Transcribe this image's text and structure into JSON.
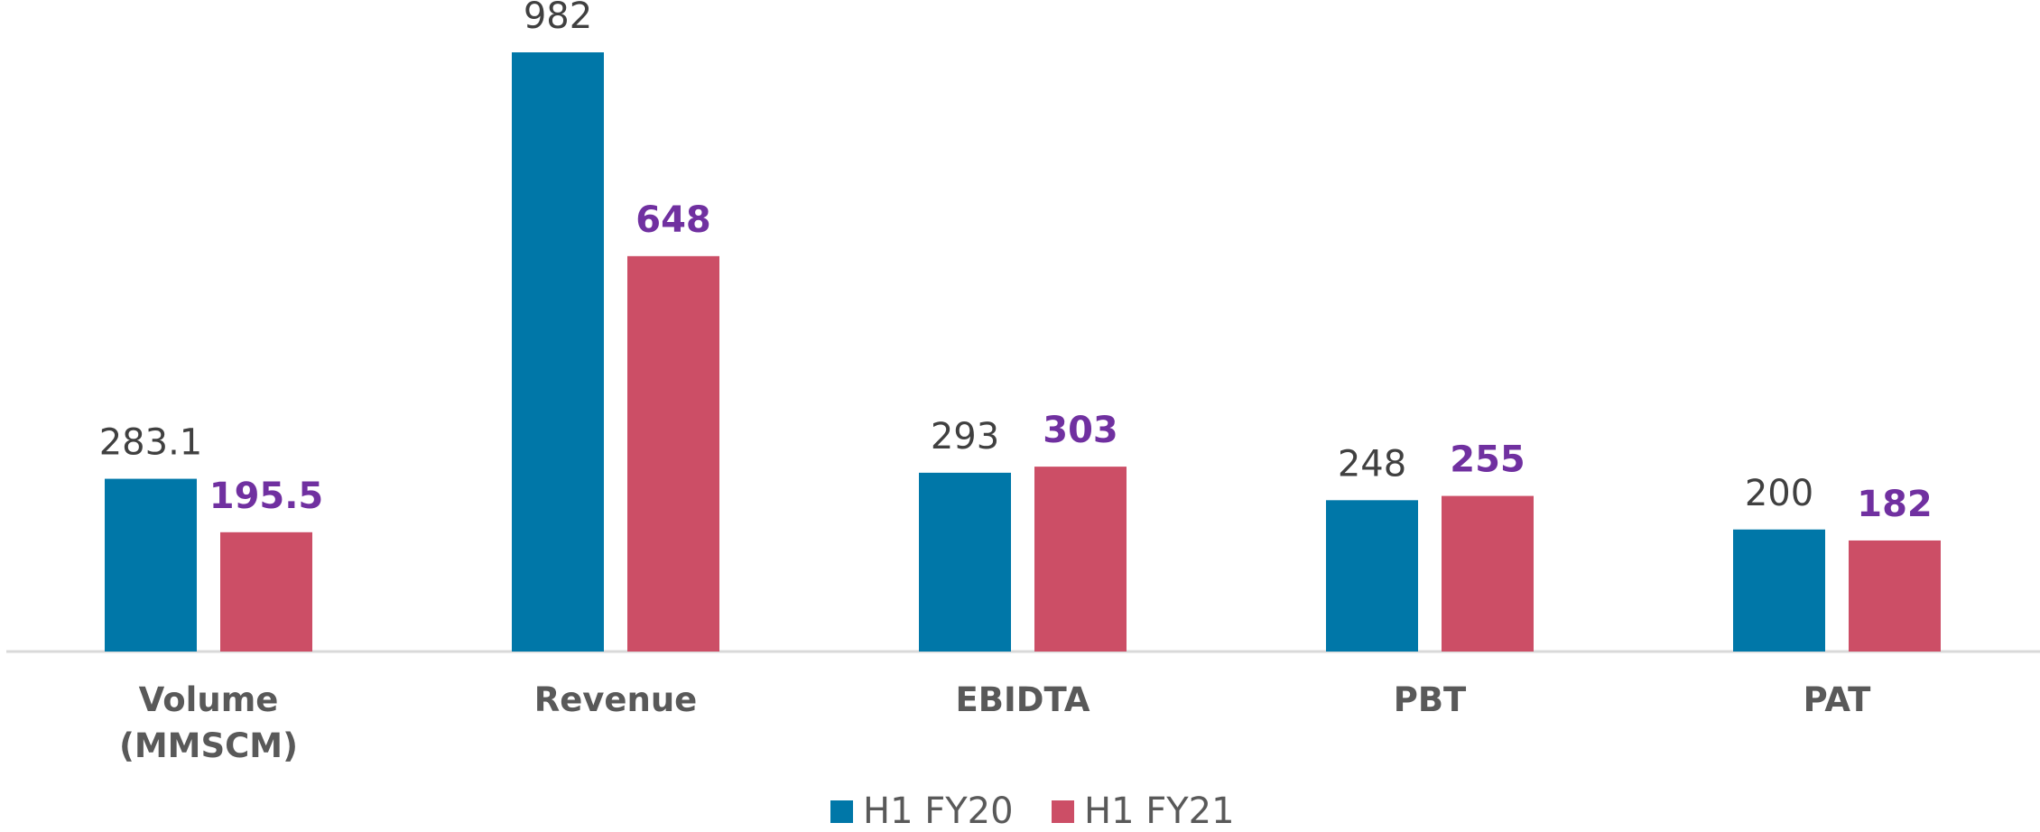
{
  "chart_data": {
    "type": "bar",
    "categories": [
      "Volume (MMSCM)",
      "Revenue",
      "EBIDTA",
      "PBT",
      "PAT"
    ],
    "series": [
      {
        "name": "H1 FY20",
        "color": "#0077a8",
        "values": [
          283.1,
          982,
          293,
          248,
          200
        ]
      },
      {
        "name": "H1 FY21",
        "color": "#cc4e66",
        "values": [
          195.5,
          648,
          303,
          255,
          182
        ]
      }
    ],
    "legend": "bottom"
  }
}
